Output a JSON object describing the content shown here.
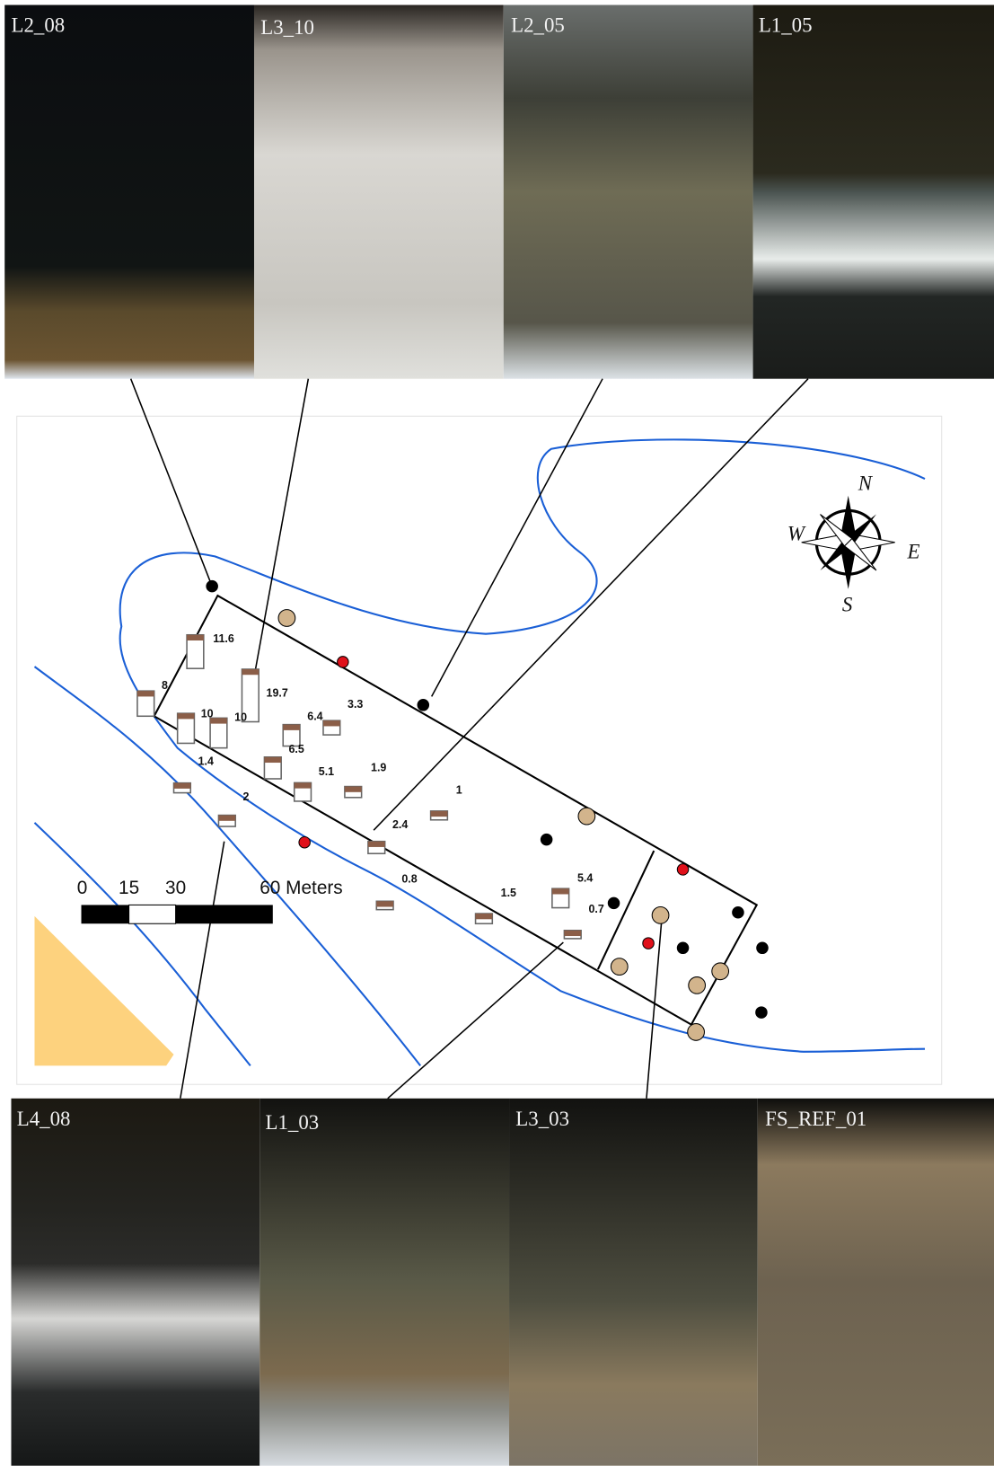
{
  "photos_top": [
    "L2_08",
    "L3_10",
    "L2_05",
    "L1_05"
  ],
  "photos_bottom": [
    "L4_08",
    "L1_03",
    "L3_03",
    "FS_REF_01"
  ],
  "compass": {
    "north": "N",
    "south": "S",
    "east": "E",
    "west": "W"
  },
  "scale_bar": {
    "ticks": [
      "0",
      "15",
      "30"
    ],
    "end_label": "60 Meters"
  },
  "bars": [
    11.6,
    19.7,
    8,
    10,
    10,
    6.4,
    3.3,
    6.5,
    5.1,
    1.9,
    1.4,
    2,
    1,
    2.4,
    0.8,
    1.5,
    5.4,
    0.7
  ]
}
